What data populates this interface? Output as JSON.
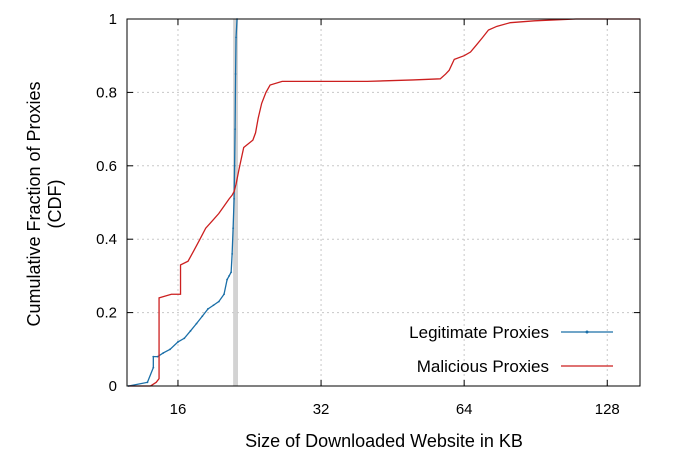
{
  "chart_data": {
    "type": "line",
    "xlabel": "Size of Downloaded Website in KB",
    "ylabel_line1": "Cumulative Fraction of Proxies",
    "ylabel_line2": "(CDF)",
    "xscale": "log2",
    "xlim": [
      12.5,
      150
    ],
    "ylim": [
      0,
      1
    ],
    "xticks": [
      16,
      32,
      64,
      128
    ],
    "xtick_labels": [
      "16",
      "32",
      "64",
      "128"
    ],
    "yticks": [
      0,
      0.2,
      0.4,
      0.6,
      0.8,
      1
    ],
    "ytick_labels": [
      "0",
      "0.2",
      "0.4",
      "0.6",
      "0.8",
      "1"
    ],
    "grid": true,
    "legend_position": "bottom-right",
    "highlight_band": {
      "x": [
        20.9,
        21.4
      ],
      "color": "#d3d3d3"
    },
    "series": [
      {
        "name": "Legitimate Proxies",
        "color": "#1a6fa8",
        "marker": "dot",
        "x": [
          12.6,
          13.8,
          14.2,
          14.2,
          14.5,
          14.9,
          15.4,
          16.0,
          16.5,
          17.0,
          17.5,
          18.0,
          18.5,
          19.0,
          19.5,
          20.0,
          20.3,
          20.5,
          20.7,
          20.8,
          20.9,
          21.0,
          21.05,
          21.1,
          21.15,
          21.2,
          21.3
        ],
        "y": [
          0.0,
          0.01,
          0.05,
          0.08,
          0.08,
          0.09,
          0.1,
          0.12,
          0.13,
          0.15,
          0.17,
          0.19,
          0.21,
          0.22,
          0.23,
          0.25,
          0.29,
          0.3,
          0.31,
          0.36,
          0.43,
          0.51,
          0.6,
          0.7,
          0.85,
          0.95,
          1.0
        ]
      },
      {
        "name": "Malicious Proxies",
        "color": "#cc1f1f",
        "marker": "none",
        "x": [
          12.6,
          14.0,
          14.4,
          14.6,
          14.6,
          15.5,
          15.8,
          16.2,
          16.2,
          16.8,
          17.3,
          17.8,
          18.3,
          18.9,
          19.5,
          20.0,
          20.5,
          20.8,
          21.0,
          21.2,
          21.5,
          22.0,
          22.5,
          23.0,
          23.3,
          23.6,
          24.0,
          24.5,
          25.0,
          26.5,
          30.0,
          40.0,
          50.0,
          57.0,
          58.5,
          59.5,
          61.0,
          64.0,
          66.0,
          68.0,
          70.0,
          72.0,
          75.0,
          80.0,
          90.0,
          110.0,
          130.0,
          150.0
        ],
        "y": [
          0.0,
          0.0,
          0.01,
          0.02,
          0.24,
          0.25,
          0.25,
          0.25,
          0.33,
          0.34,
          0.37,
          0.4,
          0.43,
          0.45,
          0.47,
          0.49,
          0.51,
          0.52,
          0.53,
          0.55,
          0.59,
          0.65,
          0.66,
          0.67,
          0.69,
          0.73,
          0.77,
          0.8,
          0.82,
          0.83,
          0.83,
          0.83,
          0.834,
          0.837,
          0.85,
          0.86,
          0.89,
          0.9,
          0.91,
          0.93,
          0.95,
          0.97,
          0.98,
          0.99,
          0.995,
          1.0,
          1.0,
          1.0
        ]
      }
    ]
  }
}
